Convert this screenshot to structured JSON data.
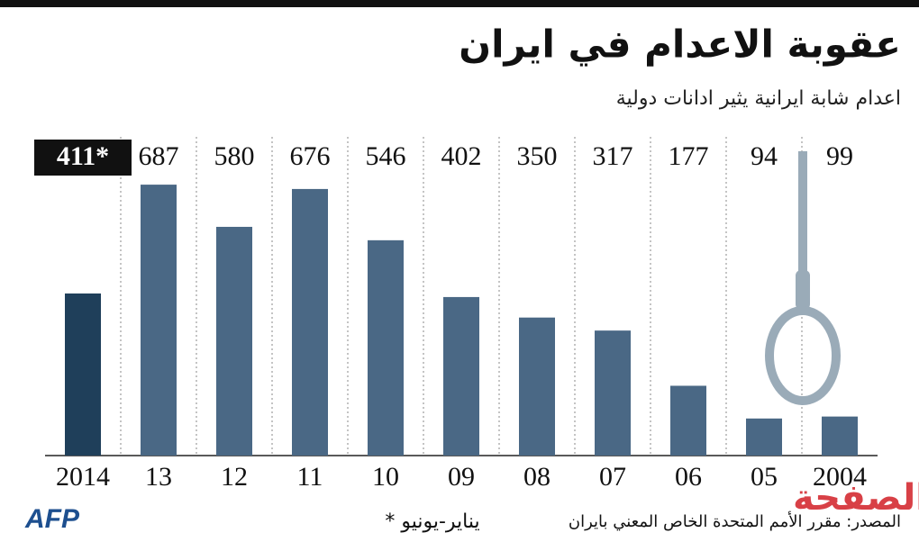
{
  "chart_data": {
    "type": "bar",
    "title": "عقوبة الاعدام في ايران",
    "subtitle": "اعدام شابة ايرانية يثير ادانات دولية",
    "categories": [
      "2014",
      "13",
      "12",
      "11",
      "10",
      "09",
      "08",
      "07",
      "06",
      "05",
      "2004"
    ],
    "values": [
      411,
      687,
      580,
      676,
      546,
      402,
      350,
      317,
      177,
      94,
      99
    ],
    "value_labels": [
      "411*",
      "687",
      "580",
      "676",
      "546",
      "402",
      "350",
      "317",
      "177",
      "94",
      "99"
    ],
    "colors": [
      "#1f3f5a",
      "#4a6885",
      "#4a6885",
      "#4a6885",
      "#4a6885",
      "#4a6885",
      "#4a6885",
      "#4a6885",
      "#4a6885",
      "#4a6885",
      "#4a6885"
    ],
    "ylim": [
      0,
      700
    ],
    "footnote": "* يناير-يونيو",
    "source": "المصدر: مقرر الأمم المتحدة الخاص المعني بايران",
    "logo": "AFP",
    "watermark": "الصفحة"
  }
}
